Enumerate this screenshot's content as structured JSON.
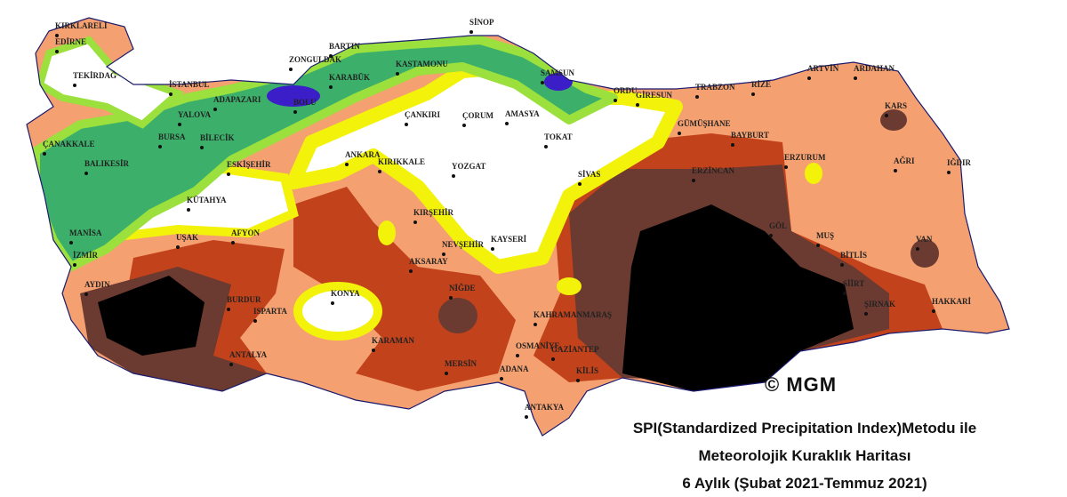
{
  "map": {
    "cities": [
      "KIRKLARELİ",
      "EDİRNE",
      "TEKİRDAĞ",
      "İSTANBUL",
      "ZONGULDAK",
      "BARTIN",
      "SİNOP",
      "KASTAMONU",
      "SAMSUN",
      "KARABÜK",
      "ADAPAZARI",
      "BOLU",
      "YALOVA",
      "BİLECİK",
      "BURSA",
      "ÇANAKKALE",
      "BALIKESİR",
      "ESKİŞEHİR",
      "ANKARA",
      "KIRIKKALE",
      "ÇANKIRI",
      "ÇORUM",
      "AMASYA",
      "TOKAT",
      "YOZGAT",
      "ORDU",
      "GİRESUN",
      "TRABZON",
      "RİZE",
      "ARTVİN",
      "ARDAHAN",
      "KARS",
      "GÜMÜŞHANE",
      "BAYBURT",
      "ERZURUM",
      "AĞRI",
      "IĞDIR",
      "SİVAS",
      "ERZİNCAN",
      "KÜTAHYA",
      "KIRŞEHİR",
      "NEVŞEHİR",
      "KAYSERİ",
      "UŞAK",
      "AFYON",
      "MANİSA",
      "İZMİR",
      "AKSARAY",
      "GÖL",
      "MUŞ",
      "BİTLİS",
      "VAN",
      "KONYA",
      "NİĞDE",
      "AYDIN",
      "BURDUR",
      "ISPARTA",
      "KAHRAMANMARAŞ",
      "SİİRT",
      "ŞIRNAK",
      "HAKKARİ",
      "KARAMAN",
      "OSMANİYE",
      "GAZİANTEP",
      "MERSİN",
      "ADANA",
      "ANTALYA",
      "KİLİS",
      "ANTAKYA"
    ],
    "copyright": "© MGM",
    "title": [
      "SPI(Standardized Precipitation Index)Metodu ile",
      "Meteorolojik Kuraklık Haritası",
      "6 Aylık (Şubat 2021-Temmuz 2021)"
    ]
  }
}
